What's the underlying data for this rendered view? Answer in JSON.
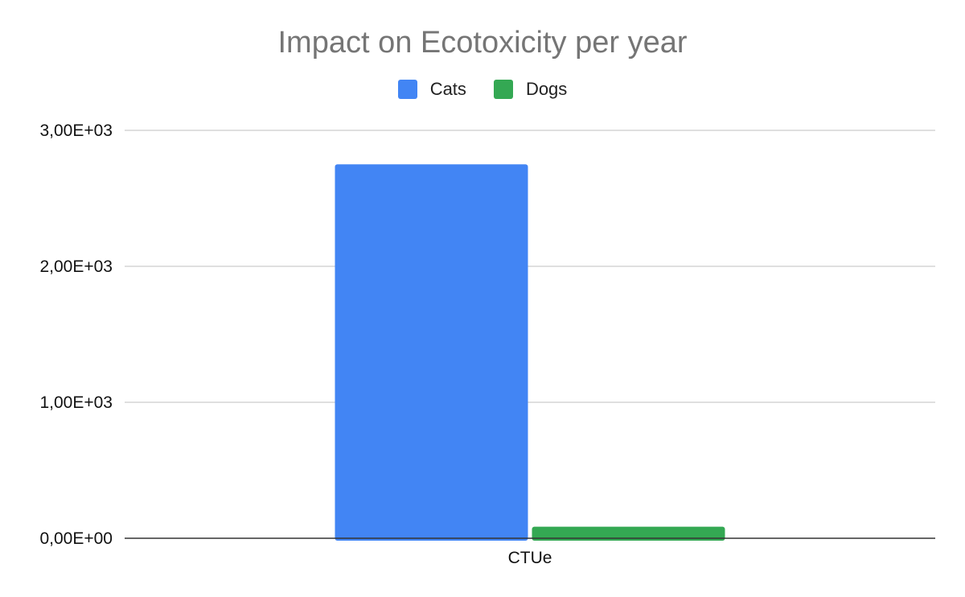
{
  "chart_data": {
    "type": "bar",
    "title": "Impact on Ecotoxicity per year",
    "categories": [
      "CTUe"
    ],
    "series": [
      {
        "name": "Cats",
        "values": [
          2750
        ],
        "color": "#4285F4"
      },
      {
        "name": "Dogs",
        "values": [
          85
        ],
        "color": "#34A853"
      }
    ],
    "ylim": [
      0,
      3000
    ],
    "yticks": [
      {
        "value": 0,
        "label": "0,00E+00"
      },
      {
        "value": 1000,
        "label": "1,00E+03"
      },
      {
        "value": 2000,
        "label": "2,00E+03"
      },
      {
        "value": 3000,
        "label": "3,00E+03"
      }
    ],
    "grid": true,
    "legend_position": "top-center"
  }
}
